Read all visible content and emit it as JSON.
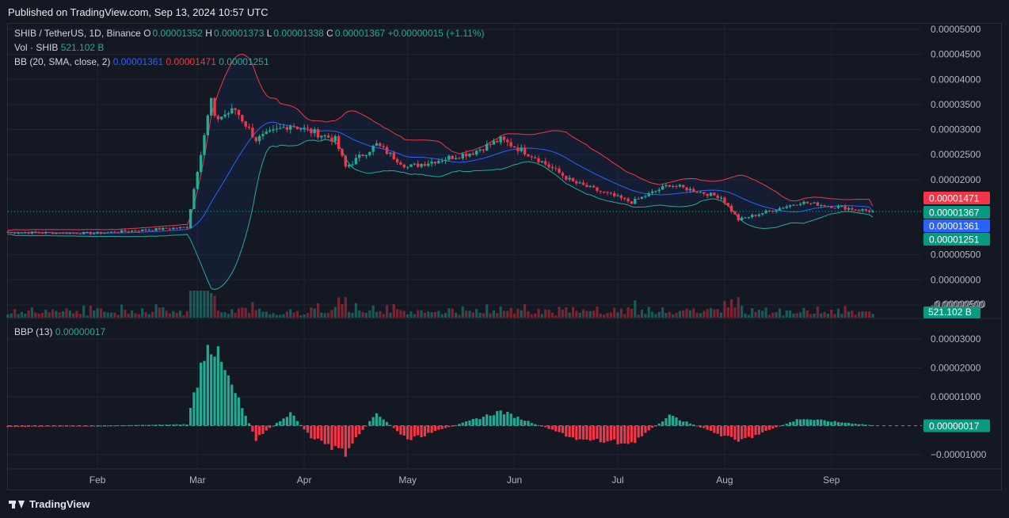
{
  "published": "Published on TradingView.com, Sep 13, 2024 10:57 UTC",
  "brand": "TradingView",
  "legend": {
    "symbol": "SHIB / TetherUS, 1D, Binance",
    "o_label": "O",
    "o": "0.00001352",
    "h_label": "H",
    "h": "0.00001373",
    "l_label": "L",
    "l": "0.00001338",
    "c_label": "C",
    "c": "0.00001367",
    "change": "+0.00000015 (+1.11%)",
    "vol_label": "Vol · SHIB",
    "vol": "521.102 B",
    "bb_label": "BB (20, SMA, close, 2)",
    "bb_basis": "0.00001361",
    "bb_upper": "0.00001471",
    "bb_lower": "0.00001251",
    "bbp_label": "BBP (13)",
    "bbp": "0.00000017"
  },
  "colors": {
    "up": "#22ab94",
    "down": "#f23645",
    "basis": "#2962ff",
    "upper": "#f23645",
    "lower": "#22ab94",
    "background": "#141823",
    "grid": "#1f2430"
  },
  "price_axis_ticks": [
    "0.00005000",
    "0.00004500",
    "0.00004000",
    "0.00003500",
    "0.00003000",
    "0.00002500",
    "0.00002000",
    "0.00000500",
    "0.00000000",
    "-0.00000500"
  ],
  "price_axis_partial_label": "0.00000500",
  "price_tags": [
    {
      "text": "0.00001471",
      "color": "#f23645"
    },
    {
      "text": "0.00001367",
      "color": "#089981"
    },
    {
      "text": "0.00001361",
      "color": "#2962ff"
    },
    {
      "text": "0.00001251",
      "color": "#089981"
    }
  ],
  "volume_tag": {
    "text": "521.102 B",
    "color": "#089981"
  },
  "bbp_axis_ticks": [
    "0.00003000",
    "0.00002000",
    "0.00001000",
    "−0.00001000"
  ],
  "bbp_tag": {
    "text": "0.00000017",
    "color": "#089981"
  },
  "time_labels": [
    "Feb",
    "Mar",
    "Apr",
    "May",
    "Jun",
    "Jul",
    "Aug",
    "Sep"
  ],
  "chart_data": [
    {
      "type": "candlestick",
      "title": "SHIB / TetherUS, 1D, Binance",
      "x_range": [
        "2024-01-06",
        "2024-09-13"
      ],
      "ylim": [
        -5e-06,
        5.3e-05
      ],
      "keypoints": [
        {
          "date": "2024-01-06",
          "close": 9.5e-06
        },
        {
          "date": "2024-01-31",
          "close": 9.3e-06
        },
        {
          "date": "2024-02-27",
          "close": 1.05e-05
        },
        {
          "date": "2024-03-01",
          "close": 2.2e-05
        },
        {
          "date": "2024-03-05",
          "close": 3.6e-05
        },
        {
          "date": "2024-03-06",
          "close": 3.2e-05
        },
        {
          "date": "2024-03-12",
          "close": 3.4e-05
        },
        {
          "date": "2024-03-18",
          "close": 2.8e-05
        },
        {
          "date": "2024-03-28",
          "close": 3.1e-05
        },
        {
          "date": "2024-04-10",
          "close": 2.8e-05
        },
        {
          "date": "2024-04-13",
          "close": 2.25e-05
        },
        {
          "date": "2024-04-22",
          "close": 2.7e-05
        },
        {
          "date": "2024-05-01",
          "close": 2.25e-05
        },
        {
          "date": "2024-05-20",
          "close": 2.55e-05
        },
        {
          "date": "2024-05-28",
          "close": 2.8e-05
        },
        {
          "date": "2024-06-07",
          "close": 2.45e-05
        },
        {
          "date": "2024-06-18",
          "close": 1.95e-05
        },
        {
          "date": "2024-07-05",
          "close": 1.55e-05
        },
        {
          "date": "2024-07-16",
          "close": 1.9e-05
        },
        {
          "date": "2024-07-31",
          "close": 1.65e-05
        },
        {
          "date": "2024-08-05",
          "close": 1.2e-05
        },
        {
          "date": "2024-08-23",
          "close": 1.55e-05
        },
        {
          "date": "2024-09-13",
          "close": 1.367e-05
        }
      ],
      "bollinger": {
        "basis_last": 1.361e-05,
        "upper_last": 1.471e-05,
        "lower_last": 1.251e-05
      }
    },
    {
      "type": "bar",
      "title": "BBP (13)",
      "ylim": [
        -1.5e-05,
        3.5e-05
      ],
      "keypoints": [
        {
          "date": "2024-01-06",
          "value": -5e-07
        },
        {
          "date": "2024-02-27",
          "value": 5e-07
        },
        {
          "date": "2024-03-04",
          "value": 3.1e-05
        },
        {
          "date": "2024-03-14",
          "value": 6e-06
        },
        {
          "date": "2024-03-18",
          "value": -4.5e-06
        },
        {
          "date": "2024-03-28",
          "value": 4.5e-06
        },
        {
          "date": "2024-04-03",
          "value": -4e-06
        },
        {
          "date": "2024-04-13",
          "value": -9.5e-06
        },
        {
          "date": "2024-04-22",
          "value": 4.5e-06
        },
        {
          "date": "2024-05-01",
          "value": -5e-06
        },
        {
          "date": "2024-05-28",
          "value": 5e-06
        },
        {
          "date": "2024-06-20",
          "value": -5e-06
        },
        {
          "date": "2024-07-05",
          "value": -6e-06
        },
        {
          "date": "2024-07-16",
          "value": 3.5e-06
        },
        {
          "date": "2024-08-05",
          "value": -5.5e-06
        },
        {
          "date": "2024-08-23",
          "value": 2.5e-06
        },
        {
          "date": "2024-09-13",
          "value": 1.7e-07
        }
      ]
    }
  ]
}
